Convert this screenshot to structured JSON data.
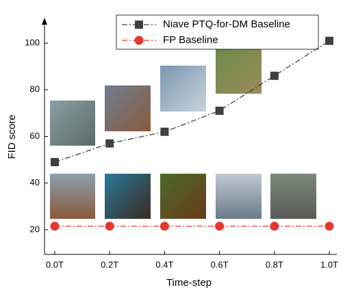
{
  "chart_data": {
    "type": "line",
    "xlabel": "Time-step",
    "ylabel": "FID score",
    "categories": [
      "0.0T",
      "0.2T",
      "0.4T",
      "0.6T",
      "0.8T",
      "1.0T"
    ],
    "series": [
      {
        "name": "Niave PTQ-for-DM Baseline",
        "color": "#404040",
        "marker": "square",
        "values": [
          49,
          57,
          62,
          71,
          86,
          101
        ]
      },
      {
        "name": "FP Baseline",
        "color": "#e8352f",
        "marker": "circle",
        "values": [
          21.5,
          21.5,
          21.5,
          21.5,
          21.5,
          21.5
        ]
      }
    ],
    "ylim": [
      10,
      110
    ],
    "yticks": [
      20,
      40,
      60,
      80,
      100
    ],
    "legend": "top"
  }
}
